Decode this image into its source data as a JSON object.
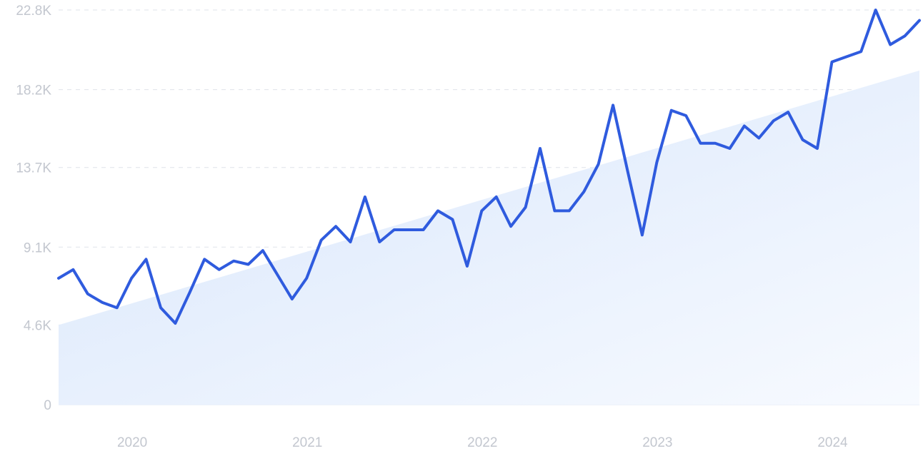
{
  "chart_data": {
    "type": "line",
    "title": "",
    "xlabel": "",
    "ylabel": "",
    "y_ticks": [
      0,
      4600,
      9100,
      13700,
      18200,
      22800
    ],
    "y_tick_labels": [
      "0",
      "4.6K",
      "9.1K",
      "13.7K",
      "18.2K",
      "22.8K"
    ],
    "x_ticks": [
      "2020",
      "2021",
      "2022",
      "2023",
      "2024"
    ],
    "x_range": [
      "2019-08",
      "2024-07"
    ],
    "ylim": [
      0,
      22800
    ],
    "grid": "horizontal dashed",
    "line_color": "#2f5bde",
    "trend_fill": "#dce9fc",
    "series": [
      {
        "x": [
          "2019-08",
          "2019-09",
          "2019-10",
          "2019-11",
          "2019-12",
          "2020-01",
          "2020-02",
          "2020-03",
          "2020-04",
          "2020-05",
          "2020-06",
          "2020-07",
          "2020-08",
          "2020-09",
          "2020-10",
          "2020-11",
          "2020-12",
          "2021-01",
          "2021-02",
          "2021-03",
          "2021-04",
          "2021-05",
          "2021-06",
          "2021-07",
          "2021-08",
          "2021-09",
          "2021-10",
          "2021-11",
          "2021-12",
          "2022-01",
          "2022-02",
          "2022-03",
          "2022-04",
          "2022-05",
          "2022-06",
          "2022-07",
          "2022-08",
          "2022-09",
          "2022-10",
          "2022-11",
          "2022-12",
          "2023-01",
          "2023-02",
          "2023-03",
          "2023-04",
          "2023-05",
          "2023-06",
          "2023-07",
          "2023-08",
          "2023-09",
          "2023-10",
          "2023-11",
          "2023-12",
          "2024-01",
          "2024-02",
          "2024-03",
          "2024-04",
          "2024-05",
          "2024-06",
          "2024-07"
        ],
        "values": [
          7300,
          7800,
          6400,
          5900,
          5600,
          7300,
          8400,
          5600,
          4700,
          6500,
          8400,
          7800,
          8300,
          8100,
          8900,
          7500,
          6100,
          7300,
          9500,
          10300,
          9400,
          12000,
          9400,
          10100,
          10100,
          10100,
          11200,
          10700,
          8000,
          11200,
          12000,
          10300,
          11400,
          14800,
          11200,
          11200,
          12300,
          13900,
          17300,
          13500,
          9800,
          14000,
          17000,
          16700,
          15100,
          15100,
          14800,
          16100,
          15400,
          16400,
          16900,
          15300,
          14800,
          19800,
          20100,
          20400,
          22800,
          20800,
          21300,
          22200
        ]
      }
    ],
    "trend": {
      "start": 4600,
      "end": 19300
    }
  }
}
